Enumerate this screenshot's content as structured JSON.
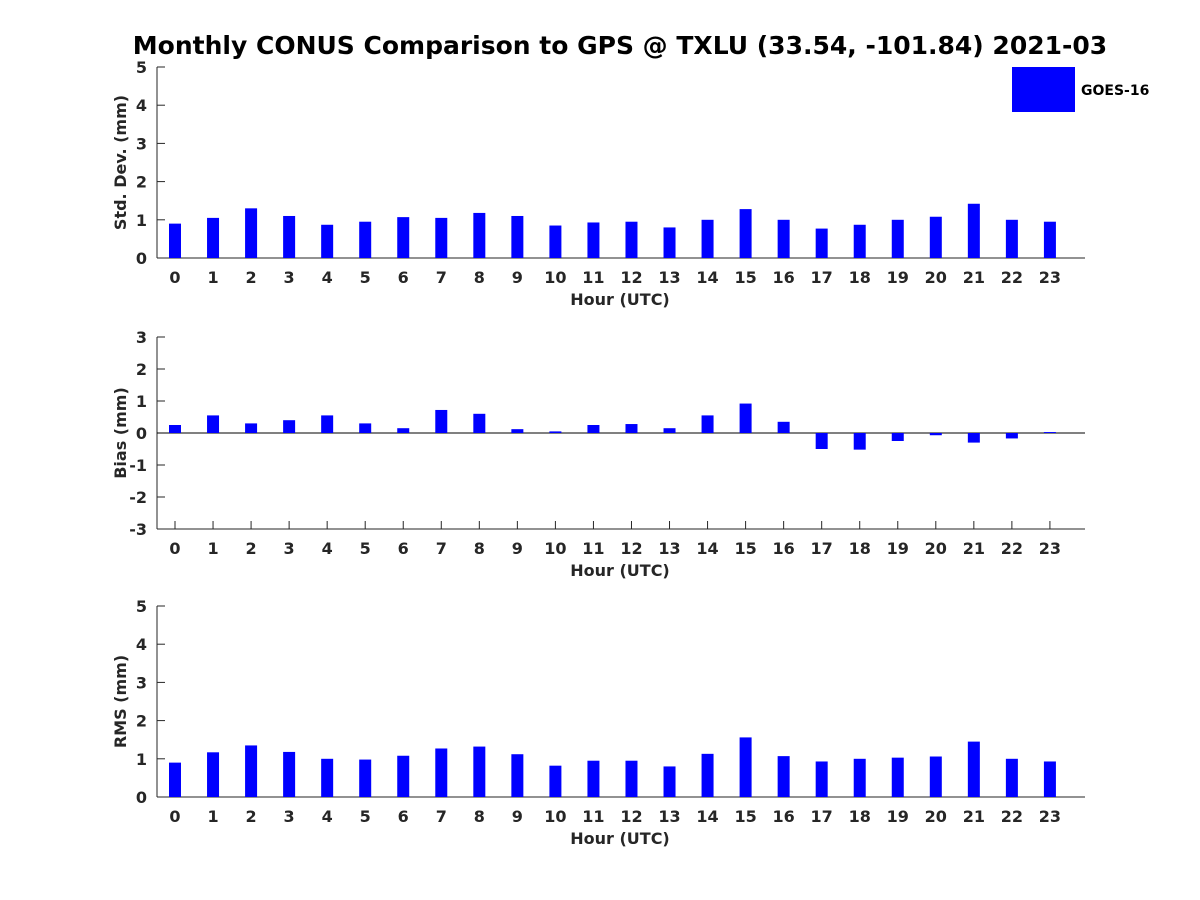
{
  "title": "Monthly CONUS Comparison to GPS @ TXLU (33.54, -101.84) 2021-03",
  "legend": {
    "label": "GOES-16",
    "color": "#0000ff",
    "placement": "top-right"
  },
  "chart_data": [
    {
      "type": "bar",
      "name": "std_dev",
      "categories": [
        "0",
        "1",
        "2",
        "3",
        "4",
        "5",
        "6",
        "7",
        "8",
        "9",
        "10",
        "11",
        "12",
        "13",
        "14",
        "15",
        "16",
        "17",
        "18",
        "19",
        "20",
        "21",
        "22",
        "23"
      ],
      "series": [
        {
          "name": "GOES-16",
          "values": [
            0.9,
            1.05,
            1.3,
            1.1,
            0.87,
            0.95,
            1.07,
            1.05,
            1.18,
            1.1,
            0.85,
            0.93,
            0.95,
            0.8,
            1.0,
            1.28,
            1.0,
            0.77,
            0.87,
            1.0,
            1.08,
            1.42,
            1.0,
            0.95
          ]
        }
      ],
      "xlabel": "Hour (UTC)",
      "ylabel": "Std. Dev. (mm)",
      "ylim": [
        0,
        5
      ],
      "yticks": [
        0,
        1,
        2,
        3,
        4,
        5
      ],
      "grid": false
    },
    {
      "type": "bar",
      "name": "bias",
      "categories": [
        "0",
        "1",
        "2",
        "3",
        "4",
        "5",
        "6",
        "7",
        "8",
        "9",
        "10",
        "11",
        "12",
        "13",
        "14",
        "15",
        "16",
        "17",
        "18",
        "19",
        "20",
        "21",
        "22",
        "23"
      ],
      "series": [
        {
          "name": "GOES-16",
          "values": [
            0.25,
            0.55,
            0.3,
            0.4,
            0.55,
            0.3,
            0.15,
            0.72,
            0.6,
            0.12,
            0.05,
            0.25,
            0.28,
            0.15,
            0.55,
            0.92,
            0.35,
            -0.5,
            -0.52,
            -0.25,
            -0.07,
            -0.3,
            -0.17,
            0.03
          ]
        }
      ],
      "xlabel": "Hour (UTC)",
      "ylabel": "Bias (mm)",
      "ylim": [
        -3,
        3
      ],
      "yticks": [
        -3,
        -2,
        -1,
        0,
        1,
        2,
        3
      ],
      "zero_line": true,
      "grid": false
    },
    {
      "type": "bar",
      "name": "rms",
      "categories": [
        "0",
        "1",
        "2",
        "3",
        "4",
        "5",
        "6",
        "7",
        "8",
        "9",
        "10",
        "11",
        "12",
        "13",
        "14",
        "15",
        "16",
        "17",
        "18",
        "19",
        "20",
        "21",
        "22",
        "23"
      ],
      "series": [
        {
          "name": "GOES-16",
          "values": [
            0.9,
            1.17,
            1.35,
            1.18,
            1.0,
            0.98,
            1.08,
            1.27,
            1.32,
            1.12,
            0.82,
            0.95,
            0.95,
            0.8,
            1.13,
            1.56,
            1.07,
            0.93,
            1.0,
            1.03,
            1.06,
            1.45,
            1.0,
            0.93
          ]
        }
      ],
      "xlabel": "Hour (UTC)",
      "ylabel": "RMS (mm)",
      "ylim": [
        0,
        5
      ],
      "yticks": [
        0,
        1,
        2,
        3,
        4,
        5
      ],
      "grid": false
    }
  ]
}
